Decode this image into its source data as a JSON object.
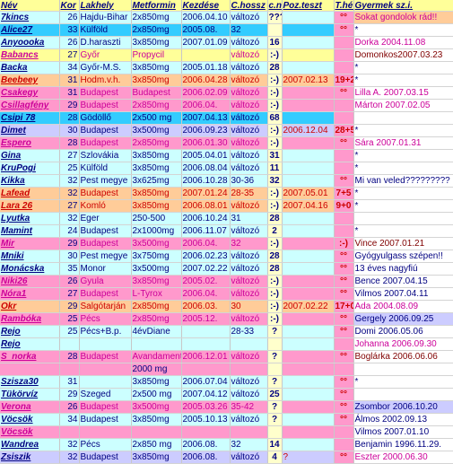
{
  "columns": [
    {
      "key": "nev",
      "label": "Név"
    },
    {
      "key": "kor",
      "label": "Kor"
    },
    {
      "key": "lakhely",
      "label": "Lakhely"
    },
    {
      "key": "metformin",
      "label": "Metformin"
    },
    {
      "key": "kezdese",
      "label": "Kezdése"
    },
    {
      "key": "chossz",
      "label": "C.hossz"
    },
    {
      "key": "cn",
      "label": "c.n"
    },
    {
      "key": "pozteszt",
      "label": "Poz.teszt"
    },
    {
      "key": "theti",
      "label": "T.hét"
    },
    {
      "key": "gyermek",
      "label": "Gyermek sz.i."
    }
  ],
  "colors": {
    "yellow": "#ffff99",
    "cyan": "#ccffff",
    "lightcyan": "#e6ffff",
    "blue": "#33ccff",
    "red": "#ff0000",
    "pink": "#ff99cc",
    "orange": "#ffcc99",
    "lavender": "#ccccff",
    "green": "#ccffcc",
    "white": "#ffffff",
    "navy": "#000080",
    "darkred": "#cc0000",
    "magenta": "#cc0099",
    "maroon": "#800000"
  },
  "rows": [
    {
      "nev": "7kincs",
      "nev_c": "navy",
      "bg": "cyan",
      "kor": "26",
      "lakhely": "Hajdu-Bihar",
      "metformin": "2x850mg",
      "kezdese": "2006.04.10",
      "chossz": "változó",
      "cn": "???",
      "pozteszt": "",
      "theti": "°°",
      "gyermek": "Sokat gondolok rád!!",
      "gy_c": "magenta",
      "gy_bg": "orange"
    },
    {
      "nev": "Alice27",
      "nev_c": "navy",
      "bg": "blue",
      "kor": "33",
      "lakhely": "Külföld",
      "metformin": "2x850mg",
      "kezdese": "2005.08.",
      "chossz": "32",
      "cn": "",
      "pozteszt": "",
      "theti": "°°",
      "gyermek": "*",
      "gy_c": "navy",
      "gy_bg": "white"
    },
    {
      "nev": "Anyoooka",
      "nev_c": "navy",
      "bg": "cyan",
      "kor": "26",
      "lakhely": "D.haraszti",
      "metformin": "3x850mg",
      "kezdese": "2007.01.09",
      "chossz": "változó",
      "cn": "16",
      "pozteszt": "",
      "theti": "",
      "gyermek": "Dorka    2004.11.08",
      "gy_c": "magenta",
      "gy_bg": "white"
    },
    {
      "nev": "Babancs",
      "nev_c": "magenta",
      "bg": "yellow",
      "kor": "27",
      "lakhely": "Győr",
      "metformin": "Propycil",
      "kezdese": "",
      "chossz": "változó",
      "cn": ":-)",
      "pozteszt": "",
      "theti": "",
      "gyermek": "Domonkos2007.03.23",
      "gy_c": "maroon",
      "gy_bg": "white"
    },
    {
      "nev": "Backa",
      "nev_c": "navy",
      "bg": "cyan",
      "kor": "34",
      "lakhely": "Győr-M.S.",
      "metformin": "3x850mg",
      "kezdese": "2005.01.18",
      "chossz": "változó",
      "cn": "28",
      "pozteszt": "",
      "theti": "",
      "gyermek": "*",
      "gy_c": "navy",
      "gy_bg": "white"
    },
    {
      "nev": "Beebeey",
      "nev_c": "darkred",
      "bg": "orange",
      "kor": "31",
      "lakhely": "Hodm.v.h.",
      "metformin": "3x850mg",
      "kezdese": "2006.04.28",
      "chossz": "változó",
      "cn": ":-)",
      "pozteszt": "2007.02.13",
      "theti": "19+2",
      "gyermek": "*",
      "gy_c": "navy",
      "gy_bg": "white"
    },
    {
      "nev": "Csakegy",
      "nev_c": "magenta",
      "bg": "pink",
      "kor": "31",
      "lakhely": "Budapest",
      "metformin": "Budapest",
      "kezdese": "2006.02.09",
      "chossz": "változó",
      "cn": ":-)",
      "pozteszt": "",
      "theti": "°°",
      "gyermek": "Lilla A.    2007.03.15",
      "gy_c": "magenta",
      "gy_bg": "white"
    },
    {
      "nev": "Csillagfény",
      "nev_c": "magenta",
      "bg": "pink",
      "kor": "29",
      "lakhely": "Budapest",
      "metformin": "2x850mg",
      "kezdese": "2006.04.",
      "chossz": "változó",
      "cn": ":-)",
      "pozteszt": "",
      "theti": "",
      "gyermek": "Márton    2007.02.05",
      "gy_c": "magenta",
      "gy_bg": "white"
    },
    {
      "nev": "Csipi 78",
      "nev_c": "navy",
      "bg": "blue",
      "kor": "28",
      "lakhely": "Gödöllő",
      "metformin": "2x500 mg",
      "kezdese": "2007.04.13",
      "chossz": "változó",
      "cn": "68",
      "pozteszt": "",
      "theti": "",
      "gyermek": "",
      "gy_c": "navy",
      "gy_bg": "white"
    },
    {
      "nev": "Dimet",
      "nev_c": "navy",
      "bg": "lavender",
      "kor": "30",
      "lakhely": "Budapest",
      "metformin": "3x500mg",
      "kezdese": "2006.09.23",
      "chossz": "változó",
      "cn": ":-)",
      "pozteszt": "2006.12.04",
      "theti": "28+5",
      "gyermek": "*",
      "gy_c": "navy",
      "gy_bg": "white"
    },
    {
      "nev": "Espero",
      "nev_c": "magenta",
      "bg": "pink",
      "kor": "28",
      "lakhely": "Budapest",
      "metformin": "2x850mg",
      "kezdese": "2006.01.30",
      "chossz": "változó",
      "cn": ":-)",
      "pozteszt": "",
      "theti": "°°",
      "gyermek": "Sára    2007.01.31",
      "gy_c": "magenta",
      "gy_bg": "white"
    },
    {
      "nev": "Gina",
      "nev_c": "navy",
      "bg": "cyan",
      "kor": "27",
      "lakhely": "Szlovákia",
      "metformin": "3x850mg",
      "kezdese": "2005.04.01",
      "chossz": "változó",
      "cn": "31",
      "pozteszt": "",
      "theti": "",
      "gyermek": "*",
      "gy_c": "navy",
      "gy_bg": "white"
    },
    {
      "nev": "KruPogi",
      "nev_c": "navy",
      "bg": "cyan",
      "kor": "25",
      "lakhely": "Külföld",
      "metformin": "3x850mg",
      "kezdese": "2006.08.04",
      "chossz": "változó",
      "cn": "11",
      "pozteszt": "",
      "theti": "",
      "gyermek": "*",
      "gy_c": "navy",
      "gy_bg": "white"
    },
    {
      "nev": "Kikka",
      "nev_c": "navy",
      "bg": "cyan",
      "kor": "32",
      "lakhely": "Pest megye",
      "metformin": "3x625mg",
      "kezdese": "2006.10.28",
      "chossz": "30-36",
      "cn": "32",
      "pozteszt": "",
      "theti": "°°",
      "gyermek": "Mi van veled?????????",
      "gy_c": "navy",
      "gy_bg": "white"
    },
    {
      "nev": "Lafead",
      "nev_c": "darkred",
      "bg": "orange",
      "kor": "32",
      "lakhely": "Budapest",
      "metformin": "3x850mg",
      "kezdese": "2007.01.24",
      "chossz": "28-35",
      "cn": ":-)",
      "pozteszt": "2007.05.01",
      "theti": "7+5",
      "gyermek": "*",
      "gy_c": "navy",
      "gy_bg": "white"
    },
    {
      "nev": "Lara 26",
      "nev_c": "darkred",
      "bg": "orange",
      "kor": "27",
      "lakhely": "Komló",
      "metformin": "3x850mg",
      "kezdese": "2006.08.01",
      "chossz": "változó",
      "cn": ":-)",
      "pozteszt": "2007.04.16",
      "theti": "9+0",
      "gyermek": "*",
      "gy_c": "navy",
      "gy_bg": "white"
    },
    {
      "nev": "Lyutka",
      "nev_c": "navy",
      "bg": "cyan",
      "kor": "32",
      "lakhely": "Eger",
      "metformin": "250-500",
      "kezdese": "2006.10.24",
      "chossz": "31",
      "cn": "28",
      "pozteszt": "",
      "theti": "",
      "gyermek": "",
      "gy_c": "navy",
      "gy_bg": "white"
    },
    {
      "nev": "Mamint",
      "nev_c": "navy",
      "bg": "cyan",
      "kor": "24",
      "lakhely": "Budapest",
      "metformin": "2x1000mg",
      "kezdese": "2006.11.07",
      "chossz": "változó",
      "cn": "2",
      "pozteszt": "",
      "theti": "",
      "gyermek": "*",
      "gy_c": "navy",
      "gy_bg": "white"
    },
    {
      "nev": "Mir",
      "nev_c": "magenta",
      "bg": "pink",
      "kor": "29",
      "lakhely": "Budapest",
      "metformin": "3x500mg",
      "kezdese": "2006.04.",
      "chossz": "32",
      "cn": ":-)",
      "pozteszt": "",
      "theti": ":-)",
      "gyermek": "Vince    2007.01.21",
      "gy_c": "maroon",
      "gy_bg": "white"
    },
    {
      "nev": "Mniki",
      "nev_c": "navy",
      "bg": "cyan",
      "kor": "30",
      "lakhely": "Pest megye",
      "metformin": "3x750mg",
      "kezdese": "2006.02.23",
      "chossz": "változó",
      "cn": "28",
      "pozteszt": "",
      "theti": "°°",
      "gyermek": "Gyógyulgass szépen!!",
      "gy_c": "navy",
      "gy_bg": "white"
    },
    {
      "nev": "Monácska",
      "nev_c": "navy",
      "bg": "cyan",
      "kor": "35",
      "lakhely": "Monor",
      "metformin": "3x500mg",
      "kezdese": "2007.02.22",
      "chossz": "változó",
      "cn": "28",
      "pozteszt": "",
      "theti": "°°",
      "gyermek": "13 éves nagyfiú",
      "gy_c": "navy",
      "gy_bg": "white"
    },
    {
      "nev": "Niki26",
      "nev_c": "magenta",
      "bg": "pink",
      "kor": "26",
      "lakhely": "Gyula",
      "metformin": "3x850mg",
      "kezdese": "2005.02.",
      "chossz": "változó",
      "cn": ":-)",
      "pozteszt": "",
      "theti": "°°",
      "gyermek": "Bence 2007.04.15",
      "gy_c": "navy",
      "gy_bg": "white"
    },
    {
      "nev": "Nóra1",
      "nev_c": "magenta",
      "bg": "pink",
      "kor": "27",
      "lakhely": "Budapest",
      "metformin": "L-Tyrox",
      "kezdese": "2006.04.",
      "chossz": "változó",
      "cn": ":-)",
      "pozteszt": "",
      "theti": "°°",
      "gyermek": "Vilmos    2007.04.11",
      "gy_c": "navy",
      "gy_bg": "white"
    },
    {
      "nev": "Okr",
      "nev_c": "darkred",
      "bg": "orange",
      "kor": "29",
      "lakhely": "Salgótarján",
      "metformin": "2x850mg",
      "kezdese": "2006.03.",
      "chossz": "30",
      "cn": ":-)",
      "pozteszt": "2007.02.22",
      "theti": "17+0",
      "gyermek": "Ada    2004.08.09",
      "gy_c": "magenta",
      "gy_bg": "white"
    },
    {
      "nev": "Rambóka",
      "nev_c": "magenta",
      "bg": "pink",
      "kor": "25",
      "lakhely": "Pécs",
      "metformin": "2x850mg",
      "kezdese": "2005.12.",
      "chossz": "változó",
      "cn": ":-)",
      "pozteszt": "",
      "theti": "°°",
      "gyermek": "Gergely    2006.09.25",
      "gy_c": "navy",
      "gy_bg": "lavender"
    },
    {
      "nev": "Rejo",
      "nev_c": "navy",
      "bg": "cyan",
      "kor": "25",
      "lakhely": "Pécs+B.p.",
      "metformin": "4évDiane",
      "kezdese": "",
      "chossz": "28-33",
      "cn": "?",
      "pozteszt": "",
      "theti": "°°",
      "gyermek": "Domi    2006.05.06",
      "gy_c": "navy",
      "gy_bg": "white"
    },
    {
      "nev": "Rejo",
      "nev_c": "navy",
      "bg": "cyan",
      "kor": "",
      "lakhely": "",
      "metformin": "",
      "kezdese": "",
      "chossz": "",
      "cn": "",
      "pozteszt": "",
      "theti": "",
      "gyermek": "Johanna    2006.09.30",
      "gy_c": "magenta",
      "gy_bg": "white"
    },
    {
      "nev": "S_norka",
      "nev_c": "magenta",
      "bg": "pink",
      "kor": "28",
      "lakhely": "Budapest",
      "metformin": "Avandament",
      "kezdese": "2006.12.01",
      "chossz": "változó",
      "cn": "?",
      "pozteszt": "",
      "theti": "°°",
      "gyermek": "Boglárka 2006.06.06",
      "gy_c": "maroon",
      "gy_bg": "white"
    },
    {
      "nev": "",
      "nev_c": "navy",
      "bg": "pink",
      "kor": "",
      "lakhely": "",
      "metformin": "2000 mg",
      "kezdese": "",
      "chossz": "",
      "cn": "",
      "pozteszt": "",
      "theti": "",
      "gyermek": "",
      "gy_c": "navy",
      "gy_bg": "white"
    },
    {
      "nev": "Szisza30",
      "nev_c": "navy",
      "bg": "cyan",
      "kor": "31",
      "lakhely": "",
      "metformin": "3x850mg",
      "kezdese": "2006.07.04",
      "chossz": "változó",
      "cn": "?",
      "pozteszt": "",
      "theti": "°°",
      "gyermek": "*",
      "gy_c": "navy",
      "gy_bg": "white"
    },
    {
      "nev": "Tükörvíz",
      "nev_c": "navy",
      "bg": "cyan",
      "kor": "29",
      "lakhely": "Szeged",
      "metformin": "2x500 mg",
      "kezdese": "2007.04.12",
      "chossz": "változó",
      "cn": "25",
      "pozteszt": "",
      "theti": "°°",
      "gyermek": "",
      "gy_c": "navy",
      "gy_bg": "white"
    },
    {
      "nev": "Verona",
      "nev_c": "magenta",
      "bg": "pink",
      "kor": "26",
      "lakhely": "Budapest",
      "metformin": "3x500mg",
      "kezdese": "2005.03.26",
      "chossz": "35-42",
      "cn": "?",
      "pozteszt": "",
      "theti": "°°",
      "gyermek": "Zsombor    2006.10.20",
      "gy_c": "navy",
      "gy_bg": "lavender"
    },
    {
      "nev": "Vöcsök",
      "nev_c": "navy",
      "bg": "cyan",
      "kor": "34",
      "lakhely": "Budapest",
      "metformin": "3x850mg",
      "kezdese": "2005.10.13",
      "chossz": "változó",
      "cn": "?",
      "pozteszt": "",
      "theti": "°°",
      "gyermek": "Álmos    2002.09.13",
      "gy_c": "navy",
      "gy_bg": "white"
    },
    {
      "nev": "Vöcsök",
      "nev_c": "magenta",
      "bg": "pink",
      "kor": "",
      "lakhely": "",
      "metformin": "",
      "kezdese": "",
      "chossz": "",
      "cn": "",
      "pozteszt": "",
      "theti": "",
      "gyermek": "Vilmos    2007.01.10",
      "gy_c": "navy",
      "gy_bg": "white"
    },
    {
      "nev": "Wandrea",
      "nev_c": "navy",
      "bg": "cyan",
      "kor": "32",
      "lakhely": "Pécs",
      "metformin": "2x850 mg",
      "kezdese": "2006.08.",
      "chossz": "32",
      "cn": "14",
      "pozteszt": "",
      "theti": "",
      "gyermek": "Benjamin 1996.11.29.",
      "gy_c": "navy",
      "gy_bg": "white"
    },
    {
      "nev": "Zsiszik",
      "nev_c": "navy",
      "bg": "lavender",
      "kor": "32",
      "lakhely": "Budapest",
      "metformin": "3x850mg",
      "kezdese": "2006.08.",
      "chossz": "változó",
      "cn": "4",
      "pozteszt": "?",
      "theti": "°°",
      "gyermek": "Eszter    2000.06.30",
      "gy_c": "magenta",
      "gy_bg": "white"
    }
  ]
}
